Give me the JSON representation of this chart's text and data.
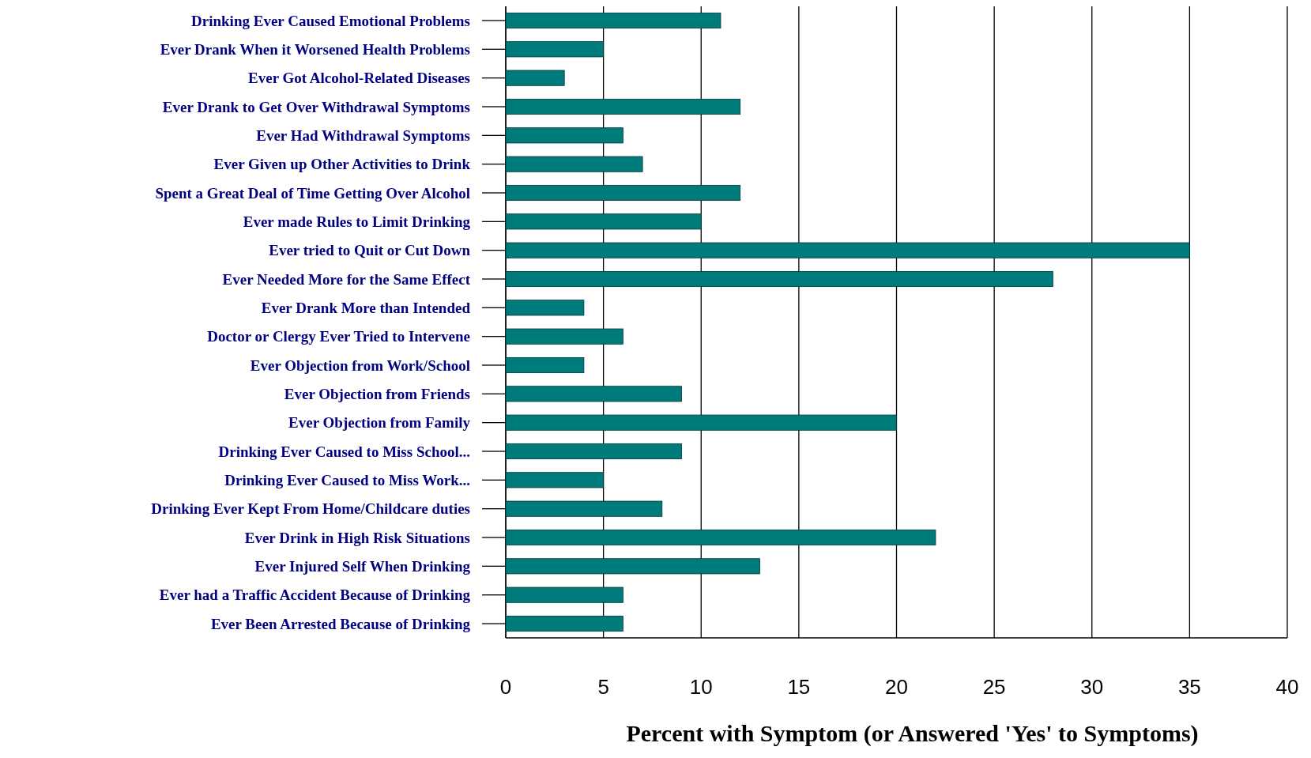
{
  "chart_data": {
    "type": "bar",
    "orientation": "horizontal",
    "xlabel": "Percent with Symptom (or Answered 'Yes' to Symptoms)",
    "categories": [
      "Drinking Ever Caused Emotional Problems",
      "Ever Drank When it Worsened Health Problems",
      "Ever Got Alcohol-Related Diseases",
      "Ever Drank to Get Over Withdrawal Symptoms",
      "Ever Had Withdrawal Symptoms",
      "Ever Given up Other Activities to Drink",
      "Spent a Great Deal of Time Getting Over Alcohol",
      "Ever made Rules to Limit Drinking",
      "Ever tried to Quit or Cut Down",
      "Ever Needed More for the Same Effect",
      "Ever Drank More than Intended",
      "Doctor or Clergy Ever Tried to Intervene",
      "Ever Objection from Work/School",
      "Ever Objection from Friends",
      "Ever Objection from Family",
      "Drinking Ever Caused to Miss School...",
      "Drinking Ever Caused to Miss Work...",
      "Drinking Ever Kept From Home/Childcare duties",
      "Ever Drink in High Risk Situations",
      "Ever Injured Self When Drinking",
      "Ever had a Traffic Accident Because of Drinking",
      "Ever Been Arrested Because of Drinking"
    ],
    "values": [
      11,
      5,
      3,
      12,
      6,
      7,
      12,
      10,
      35,
      28,
      4,
      6,
      4,
      9,
      20,
      9,
      5,
      8,
      22,
      13,
      6,
      6
    ],
    "color": "#007b7b",
    "xlim": [
      0,
      40
    ],
    "xticks": [
      0,
      5,
      10,
      15,
      20,
      25,
      30,
      35,
      40
    ],
    "grid": "x"
  }
}
